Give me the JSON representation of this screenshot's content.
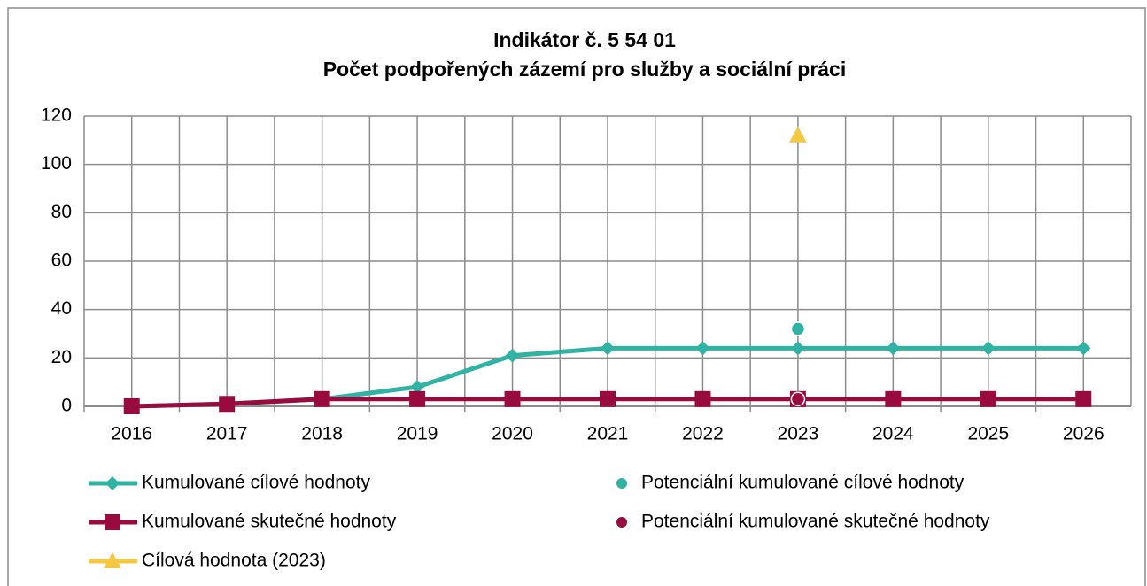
{
  "chart_data": {
    "type": "line",
    "title": "Indikátor č. 5 54 01",
    "subtitle": "Počet podpořených zázemí pro služby a sociální práci",
    "categories": [
      "2016",
      "2017",
      "2018",
      "2019",
      "2020",
      "2021",
      "2022",
      "2023",
      "2024",
      "2025",
      "2026"
    ],
    "series": [
      {
        "name": "Kumulované cílové hodnoty",
        "color": "#2fb3a3",
        "marker": "diamond",
        "line": true,
        "values": [
          0,
          1,
          3,
          8,
          21,
          24,
          24,
          24,
          24,
          24,
          24
        ]
      },
      {
        "name": "Potenciální kumulované cílové hodnoty",
        "color": "#2fb3a3",
        "marker": "circle",
        "line": false,
        "values": [
          null,
          null,
          null,
          null,
          null,
          null,
          null,
          32,
          null,
          null,
          null
        ]
      },
      {
        "name": "Kumulované skutečné hodnoty",
        "color": "#990b3e",
        "marker": "square",
        "line": true,
        "values": [
          0,
          1,
          3,
          3,
          3,
          3,
          3,
          3,
          3,
          3,
          3
        ]
      },
      {
        "name": "Potenciální kumulované skutečné hodnoty",
        "color": "#990b3e",
        "marker": "circle",
        "line": false,
        "values": [
          null,
          null,
          null,
          null,
          null,
          null,
          null,
          3,
          null,
          null,
          null
        ]
      },
      {
        "name": "Cílová hodnota (2023)",
        "color": "#f5c842",
        "marker": "triangle",
        "line": false,
        "values": [
          null,
          null,
          null,
          null,
          null,
          null,
          null,
          112,
          null,
          null,
          null
        ]
      }
    ],
    "ylim": [
      0,
      120
    ],
    "yticks": [
      0,
      20,
      40,
      60,
      80,
      100,
      120
    ],
    "grid": true
  }
}
